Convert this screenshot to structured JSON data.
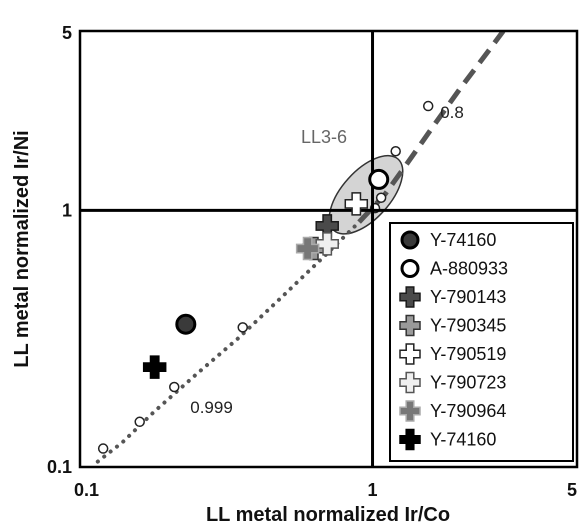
{
  "chart_data": {
    "type": "scatter",
    "xlabel": "LL metal normalized Ir/Co",
    "ylabel": "LL metal normalized Ir/Ni",
    "xscale": "log",
    "yscale": "log",
    "xlim": [
      0.1,
      5
    ],
    "ylim": [
      0.1,
      5
    ],
    "x_ticks": [
      "0.1",
      "1",
      "5"
    ],
    "y_ticks": [
      "0.1",
      "1",
      "5"
    ],
    "reference_lines": {
      "x": 1,
      "y": 1
    },
    "legend_position": "bottom-right",
    "series": [
      {
        "name": "Y-74160",
        "marker": "circle",
        "fill": "#3a3a3a",
        "stroke": "#000000",
        "points": [
          [
            0.23,
            0.36
          ]
        ]
      },
      {
        "name": "A-880933",
        "marker": "circle",
        "fill": "#ffffff",
        "stroke": "#000000",
        "points": [
          [
            1.05,
            1.32
          ]
        ]
      },
      {
        "name": "Y-790143",
        "marker": "cross",
        "fill": "#4a4a4a",
        "stroke": "#1a1a1a",
        "points": [
          [
            0.7,
            0.87
          ]
        ]
      },
      {
        "name": "Y-790345",
        "marker": "cross",
        "fill": "#9a9a9a",
        "stroke": "#333333",
        "points": [
          [
            0.63,
            0.71
          ]
        ]
      },
      {
        "name": "Y-790519",
        "marker": "cross",
        "fill": "#ffffff",
        "stroke": "#222222",
        "points": [
          [
            0.88,
            1.06
          ]
        ]
      },
      {
        "name": "Y-790723",
        "marker": "cross",
        "fill": "#efefef",
        "stroke": "#555555",
        "points": [
          [
            0.7,
            0.74
          ]
        ]
      },
      {
        "name": "Y-790964",
        "marker": "cross",
        "fill": "#777777",
        "stroke": "#aaaaaa",
        "points": [
          [
            0.6,
            0.71
          ]
        ]
      },
      {
        "name": "Y-74160",
        "marker": "cross",
        "fill": "#000000",
        "stroke": "#000000",
        "points": [
          [
            0.18,
            0.245
          ]
        ]
      }
    ],
    "curve": {
      "points": [
        [
          0.115,
          0.105
        ],
        [
          0.14,
          0.125
        ],
        [
          0.18,
          0.165
        ],
        [
          0.25,
          0.23
        ],
        [
          0.35,
          0.32
        ],
        [
          0.5,
          0.47
        ],
        [
          0.7,
          0.68
        ],
        [
          0.9,
          0.9
        ],
        [
          1.1,
          1.15
        ],
        [
          1.3,
          1.5
        ],
        [
          1.6,
          2.1
        ],
        [
          2.0,
          3.0
        ],
        [
          2.5,
          4.2
        ],
        [
          2.8,
          5.0
        ]
      ],
      "markers": [
        [
          0.12,
          0.118
        ],
        [
          0.16,
          0.15
        ],
        [
          0.21,
          0.205
        ],
        [
          0.36,
          0.35
        ],
        [
          1.02,
          1.02
        ],
        [
          1.07,
          1.12
        ],
        [
          1.2,
          1.7
        ],
        [
          1.55,
          2.55
        ]
      ],
      "annotations": [
        {
          "text": "0.8",
          "x": 1.55,
          "y": 2.55
        },
        {
          "text": "0.999",
          "x": 0.21,
          "y": 0.205
        }
      ]
    },
    "region": {
      "label": "LL3-6",
      "center": [
        0.95,
        1.15
      ]
    }
  }
}
